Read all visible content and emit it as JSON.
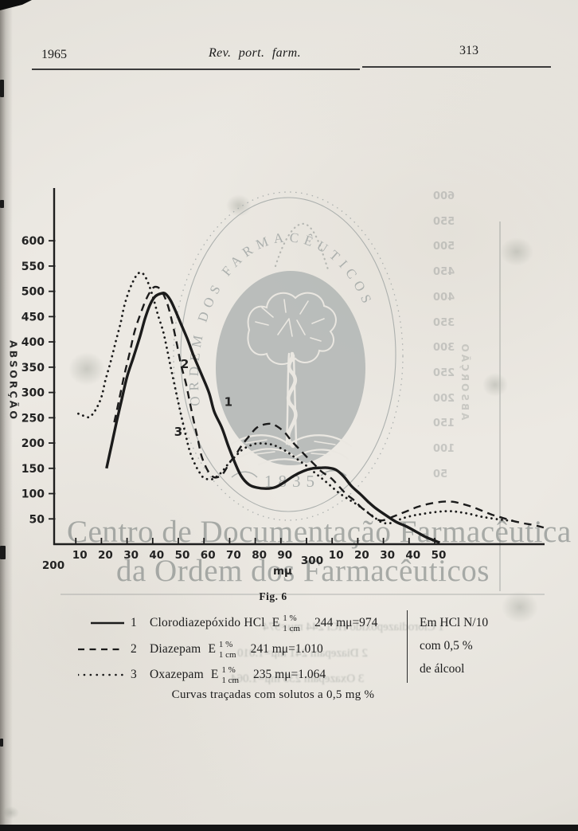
{
  "header": {
    "year": "1965",
    "journal": "Rev. port. farm.",
    "page_number": "313"
  },
  "y_axis_label": "ABSORÇÃO",
  "x_axis_unit": "mμ",
  "figure_caption": "Fig. 6",
  "legend": {
    "rows": [
      {
        "number": "1",
        "name": "Clorodiazepóxido HCl",
        "e_symbol": "E",
        "e_sup": "1 %",
        "e_sub": "1 cm",
        "value": "244 mμ=974",
        "line_style": "solid"
      },
      {
        "number": "2",
        "name": "Diazepam",
        "e_symbol": "E",
        "e_sup": "1 %",
        "e_sub": "1 cm",
        "value": "241 mμ=1.010",
        "line_style": "dashed"
      },
      {
        "number": "3",
        "name": "Oxazepam",
        "e_symbol": "E",
        "e_sup": "1 %",
        "e_sub": "1 cm",
        "value": "235 mμ=1.064",
        "line_style": "dotted"
      }
    ],
    "side_note": [
      "Em HCl N/10",
      "com 0,5 %",
      "de álcool"
    ]
  },
  "bottom_caption": "Curvas traçadas com solutos a 0,5 mg %",
  "watermark": {
    "line1": "Centro de Documentação Farmacêutica",
    "line2": "da Ordem dos Farmacêuticos",
    "emblem_arc_text": "ORDEM DOS FARMACÊUTICOS",
    "emblem_year": "1835"
  },
  "bleedthrough": {
    "axis_numbers": [
      "600",
      "550",
      "500",
      "450",
      "400",
      "350",
      "300",
      "250",
      "200",
      "150",
      "100",
      "50"
    ],
    "axis_label": "ABSORÇÃO"
  },
  "chart_data": {
    "type": "line",
    "title": "Fig. 6",
    "xlabel": "mμ",
    "ylabel": "ABSORÇÃO",
    "x_range": [
      200,
      395
    ],
    "y_range": [
      0,
      700
    ],
    "grid": false,
    "x_ticks": [
      {
        "v": 210,
        "label": "10"
      },
      {
        "v": 220,
        "label": "20"
      },
      {
        "v": 230,
        "label": "30"
      },
      {
        "v": 240,
        "label": "40"
      },
      {
        "v": 250,
        "label": "50"
      },
      {
        "v": 260,
        "label": "60"
      },
      {
        "v": 270,
        "label": "70"
      },
      {
        "v": 280,
        "label": "80"
      },
      {
        "v": 290,
        "label": "90"
      },
      {
        "v": 300,
        "label": ""
      },
      {
        "v": 310,
        "label": "10"
      },
      {
        "v": 320,
        "label": "20"
      },
      {
        "v": 330,
        "label": "30"
      },
      {
        "v": 340,
        "label": "40"
      },
      {
        "v": 350,
        "label": "50"
      }
    ],
    "x_hundred_labels": [
      {
        "v": 200,
        "label": "200"
      },
      {
        "v": 300,
        "label": "300"
      }
    ],
    "y_ticks": [
      50,
      100,
      150,
      200,
      250,
      300,
      350,
      400,
      450,
      500,
      550,
      600
    ],
    "annotations": [
      {
        "text": "1",
        "x": 269.5,
        "y": 281
      },
      {
        "text": "2",
        "x": 252.5,
        "y": 356
      },
      {
        "text": "3",
        "x": 250.0,
        "y": 222
      }
    ],
    "series": [
      {
        "name": "Clorodiazepóxido HCl",
        "style": "solid",
        "lambda_max": "244 mμ",
        "points": [
          [
            222,
            150
          ],
          [
            224,
            197
          ],
          [
            226,
            244
          ],
          [
            228,
            288
          ],
          [
            230,
            331
          ],
          [
            232.5,
            370
          ],
          [
            235,
            410
          ],
          [
            237,
            446
          ],
          [
            239,
            474
          ],
          [
            241,
            490
          ],
          [
            243.5,
            496
          ],
          [
            245,
            495
          ],
          [
            247,
            482
          ],
          [
            249,
            460
          ],
          [
            251,
            436
          ],
          [
            253.5,
            406
          ],
          [
            256,
            372
          ],
          [
            259,
            336
          ],
          [
            262,
            299
          ],
          [
            264,
            262
          ],
          [
            267,
            230
          ],
          [
            269.5,
            194
          ],
          [
            272,
            162
          ],
          [
            274.5,
            135
          ],
          [
            277.5,
            118
          ],
          [
            280.5,
            112
          ],
          [
            284.5,
            110
          ],
          [
            288,
            113
          ],
          [
            291.5,
            123
          ],
          [
            295,
            135
          ],
          [
            299,
            145
          ],
          [
            302.5,
            150
          ],
          [
            305.5,
            151
          ],
          [
            308.5,
            151
          ],
          [
            311.5,
            147
          ],
          [
            314.5,
            134
          ],
          [
            317.5,
            115
          ],
          [
            321,
            99
          ],
          [
            324,
            84
          ],
          [
            327,
            71
          ],
          [
            331,
            57
          ],
          [
            335,
            44
          ],
          [
            339,
            35
          ],
          [
            343,
            24
          ],
          [
            347,
            13
          ],
          [
            352,
            3
          ]
        ]
      },
      {
        "name": "Diazepam",
        "style": "dashed",
        "lambda_max": "241 mμ",
        "points": [
          [
            225,
            241
          ],
          [
            227,
            288
          ],
          [
            229,
            336
          ],
          [
            231,
            378
          ],
          [
            233,
            422
          ],
          [
            235.5,
            459
          ],
          [
            237.5,
            485
          ],
          [
            239.5,
            503
          ],
          [
            241,
            509
          ],
          [
            243,
            504
          ],
          [
            245,
            485
          ],
          [
            246.5,
            462
          ],
          [
            248,
            430
          ],
          [
            249.5,
            394
          ],
          [
            251,
            356
          ],
          [
            253,
            317
          ],
          [
            254.5,
            280
          ],
          [
            256,
            244
          ],
          [
            257.5,
            210
          ],
          [
            259,
            175
          ],
          [
            261,
            150
          ],
          [
            263,
            135
          ],
          [
            265,
            132
          ],
          [
            267.5,
            140
          ],
          [
            270,
            161
          ],
          [
            272.5,
            178
          ],
          [
            275,
            197
          ],
          [
            278,
            216
          ],
          [
            280.5,
            230
          ],
          [
            283,
            236
          ],
          [
            286,
            238
          ],
          [
            288.5,
            233
          ],
          [
            291.5,
            221
          ],
          [
            294,
            205
          ],
          [
            297,
            189
          ],
          [
            300,
            173
          ],
          [
            303,
            158
          ],
          [
            306,
            143
          ],
          [
            309.5,
            131
          ],
          [
            312.5,
            115
          ],
          [
            315.5,
            99
          ],
          [
            318.5,
            87
          ],
          [
            321.5,
            72
          ],
          [
            325,
            58
          ],
          [
            327,
            50
          ],
          [
            329.5,
            47
          ],
          [
            332.5,
            52
          ],
          [
            335.5,
            58
          ],
          [
            339.5,
            66
          ],
          [
            343.5,
            74
          ],
          [
            348,
            80
          ],
          [
            353,
            84
          ],
          [
            357,
            84
          ],
          [
            360.5,
            80
          ],
          [
            364.5,
            74
          ],
          [
            368.5,
            66
          ],
          [
            372.5,
            58
          ],
          [
            376.5,
            52
          ],
          [
            380.5,
            46
          ],
          [
            385,
            41
          ],
          [
            388.5,
            38
          ],
          [
            392.5,
            33
          ]
        ]
      },
      {
        "name": "Oxazepam",
        "style": "dotted",
        "lambda_max": "235 mμ",
        "points": [
          [
            211,
            258
          ],
          [
            212.5,
            255
          ],
          [
            214.5,
            251
          ],
          [
            216,
            254
          ],
          [
            218,
            268
          ],
          [
            220,
            291
          ],
          [
            221.5,
            323
          ],
          [
            223.5,
            359
          ],
          [
            225.5,
            399
          ],
          [
            227.5,
            438
          ],
          [
            229,
            473
          ],
          [
            231,
            504
          ],
          [
            233,
            526
          ],
          [
            234.5,
            536
          ],
          [
            236,
            536
          ],
          [
            237.5,
            525
          ],
          [
            239,
            506
          ],
          [
            240.5,
            482
          ],
          [
            242,
            454
          ],
          [
            244,
            422
          ],
          [
            245.5,
            388
          ],
          [
            247,
            351
          ],
          [
            248.5,
            315
          ],
          [
            250,
            280
          ],
          [
            251.5,
            246
          ],
          [
            253,
            213
          ],
          [
            254.5,
            183
          ],
          [
            256.5,
            158
          ],
          [
            258.5,
            140
          ],
          [
            260,
            131
          ],
          [
            262.5,
            128
          ],
          [
            264.5,
            132
          ],
          [
            267,
            143
          ],
          [
            269.5,
            159
          ],
          [
            272.5,
            175
          ],
          [
            275,
            187
          ],
          [
            278,
            195
          ],
          [
            280.5,
            199
          ],
          [
            283.5,
            199
          ],
          [
            286.5,
            197
          ],
          [
            289,
            192
          ],
          [
            292,
            184
          ],
          [
            294.5,
            175
          ],
          [
            297.5,
            164
          ],
          [
            300.5,
            153
          ],
          [
            303.5,
            140
          ],
          [
            306.5,
            128
          ],
          [
            309.5,
            115
          ],
          [
            312.5,
            102
          ],
          [
            316,
            90
          ],
          [
            319.5,
            79
          ],
          [
            322.5,
            68
          ],
          [
            326,
            55
          ],
          [
            329,
            44
          ],
          [
            332,
            41
          ],
          [
            335,
            46
          ],
          [
            338,
            52
          ],
          [
            342,
            57
          ],
          [
            345.5,
            60
          ],
          [
            349.5,
            63
          ],
          [
            353.5,
            65
          ],
          [
            357,
            65
          ],
          [
            360,
            63
          ],
          [
            363.5,
            60
          ],
          [
            367.5,
            55
          ],
          [
            371,
            52
          ],
          [
            375,
            49
          ],
          [
            378.5,
            47
          ],
          [
            381.5,
            46
          ]
        ]
      }
    ]
  }
}
